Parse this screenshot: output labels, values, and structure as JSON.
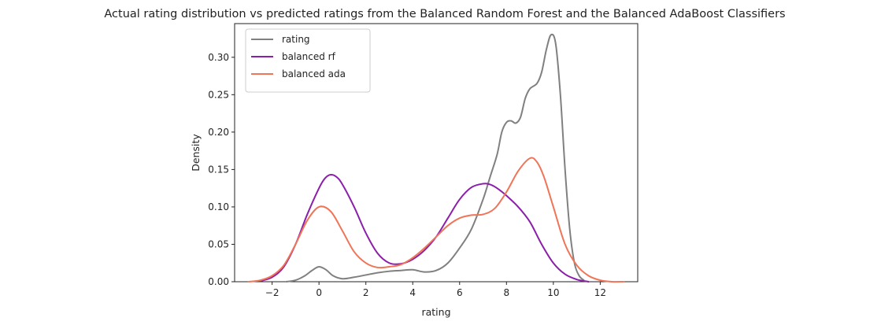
{
  "chart_data": {
    "type": "line",
    "title": "Actual rating distribution vs predicted ratings from the Balanced Random Forest and the Balanced AdaBoost Classifiers",
    "xlabel": "rating",
    "ylabel": "Density",
    "xlim": [
      -3.6,
      13.6
    ],
    "ylim": [
      0,
      0.345
    ],
    "xticks": [
      -2,
      0,
      2,
      4,
      6,
      8,
      10,
      12
    ],
    "xtick_labels": [
      "−2",
      "0",
      "2",
      "4",
      "6",
      "8",
      "10",
      "12"
    ],
    "yticks": [
      0.0,
      0.05,
      0.1,
      0.15,
      0.2,
      0.25,
      0.3
    ],
    "ytick_labels": [
      "0.00",
      "0.05",
      "0.10",
      "0.15",
      "0.20",
      "0.25",
      "0.30"
    ],
    "grid": false,
    "legend_position": "top-left",
    "series": [
      {
        "name": "rating",
        "color": "#808080",
        "x": [
          -1.4,
          -1.0,
          -0.6,
          -0.3,
          0.0,
          0.3,
          0.6,
          1.0,
          1.5,
          2.0,
          2.5,
          3.0,
          3.5,
          4.0,
          4.5,
          5.0,
          5.5,
          6.0,
          6.5,
          7.0,
          7.3,
          7.6,
          7.8,
          8.0,
          8.2,
          8.4,
          8.6,
          8.8,
          9.0,
          9.3,
          9.5,
          9.7,
          9.9,
          10.1,
          10.3,
          10.5,
          10.7,
          10.9,
          11.1,
          11.3
        ],
        "y": [
          0.0,
          0.002,
          0.008,
          0.015,
          0.02,
          0.016,
          0.008,
          0.004,
          0.006,
          0.009,
          0.012,
          0.014,
          0.015,
          0.016,
          0.013,
          0.015,
          0.025,
          0.045,
          0.07,
          0.11,
          0.14,
          0.17,
          0.2,
          0.213,
          0.215,
          0.212,
          0.22,
          0.245,
          0.258,
          0.265,
          0.28,
          0.31,
          0.33,
          0.318,
          0.25,
          0.15,
          0.07,
          0.025,
          0.008,
          0.002
        ]
      },
      {
        "name": "balanced rf",
        "color": "#8b1fa9",
        "x": [
          -2.5,
          -2.0,
          -1.5,
          -1.0,
          -0.5,
          0.0,
          0.25,
          0.5,
          0.75,
          1.0,
          1.5,
          2.0,
          2.5,
          3.0,
          3.5,
          4.0,
          4.5,
          5.0,
          5.5,
          6.0,
          6.5,
          7.0,
          7.3,
          7.6,
          8.0,
          8.5,
          9.0,
          9.5,
          10.0,
          10.5,
          11.0,
          11.5
        ],
        "y": [
          0.001,
          0.006,
          0.02,
          0.05,
          0.09,
          0.125,
          0.138,
          0.143,
          0.14,
          0.13,
          0.1,
          0.065,
          0.038,
          0.025,
          0.024,
          0.03,
          0.042,
          0.06,
          0.085,
          0.11,
          0.126,
          0.131,
          0.13,
          0.125,
          0.115,
          0.1,
          0.08,
          0.05,
          0.025,
          0.01,
          0.003,
          0.0
        ]
      },
      {
        "name": "balanced ada",
        "color": "#f07558",
        "x": [
          -3.0,
          -2.5,
          -2.0,
          -1.5,
          -1.0,
          -0.5,
          0.0,
          0.5,
          1.0,
          1.5,
          2.0,
          2.5,
          3.0,
          3.5,
          4.0,
          4.5,
          5.0,
          5.5,
          6.0,
          6.5,
          7.0,
          7.5,
          8.0,
          8.5,
          9.0,
          9.3,
          9.6,
          10.0,
          10.5,
          11.0,
          11.5,
          12.0,
          12.5,
          13.0
        ],
        "y": [
          0.0,
          0.002,
          0.008,
          0.022,
          0.05,
          0.082,
          0.1,
          0.094,
          0.068,
          0.04,
          0.025,
          0.019,
          0.02,
          0.023,
          0.032,
          0.045,
          0.06,
          0.075,
          0.085,
          0.089,
          0.09,
          0.098,
          0.12,
          0.148,
          0.165,
          0.16,
          0.14,
          0.1,
          0.05,
          0.022,
          0.008,
          0.002,
          0.0,
          0.0
        ]
      }
    ]
  }
}
